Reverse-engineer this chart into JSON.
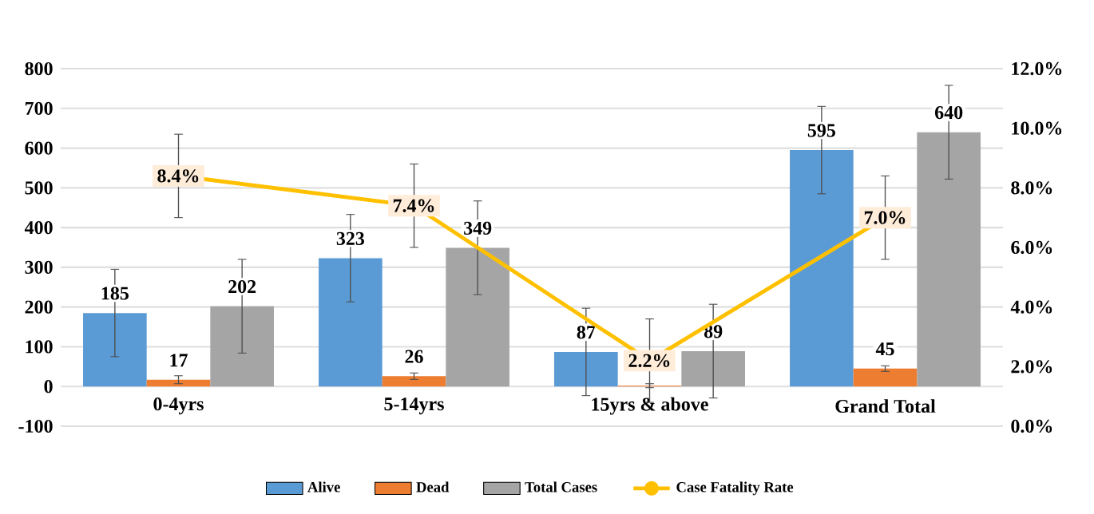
{
  "chart_data": {
    "type": "bar",
    "categories": [
      "0-4yrs",
      "5-14yrs",
      "15yrs & above",
      "Grand Total"
    ],
    "series": [
      {
        "name": "Alive",
        "color": "#5b9bd5",
        "values": [
          185,
          323,
          87,
          595
        ],
        "errors": [
          110,
          110,
          110,
          110
        ],
        "value_labels": [
          "185",
          "323",
          "87",
          "595"
        ]
      },
      {
        "name": "Dead",
        "color": "#ed7d31",
        "values": [
          17,
          26,
          2,
          45
        ],
        "errors": [
          10,
          8,
          5,
          7
        ],
        "value_labels": [
          "17",
          "26",
          null,
          "45"
        ]
      },
      {
        "name": "Total Cases",
        "color": "#a5a5a5",
        "values": [
          202,
          349,
          89,
          640
        ],
        "errors": [
          118,
          118,
          118,
          118
        ],
        "value_labels": [
          "202",
          "349",
          "89",
          "640"
        ]
      },
      {
        "name": "Case Fatality Rate",
        "type": "line",
        "axis": "y2",
        "marker": "circle",
        "color": "#ffc000",
        "values": [
          8.4,
          7.4,
          2.2,
          7.0
        ],
        "errors": [
          1.4,
          1.4,
          1.4,
          1.4
        ],
        "value_labels": [
          "8.4%",
          "7.4%",
          "2.2%",
          "7.0%"
        ]
      }
    ],
    "ylim": [
      -100,
      800
    ],
    "yticks": [
      -100,
      0,
      100,
      200,
      300,
      400,
      500,
      600,
      700,
      800
    ],
    "y2lim": [
      0,
      12
    ],
    "y2ticks": [
      {
        "value": 0,
        "label": "0.0%"
      },
      {
        "value": 2,
        "label": "2.0%"
      },
      {
        "value": 4,
        "label": "4.0%"
      },
      {
        "value": 6,
        "label": "6.0%"
      },
      {
        "value": 8,
        "label": "8.0%"
      },
      {
        "value": 10,
        "label": "10.0%"
      },
      {
        "value": 12,
        "label": "12.0%"
      }
    ],
    "grid": "y",
    "legend": "bottom"
  }
}
